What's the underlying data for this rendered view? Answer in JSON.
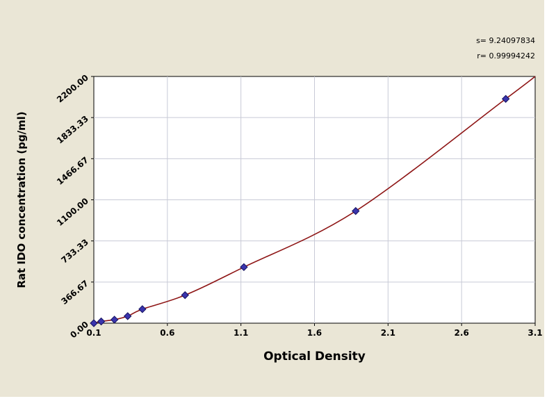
{
  "page": {
    "background": "#eae6d6",
    "plot_background": "#ffffff"
  },
  "chart_data": {
    "type": "scatter",
    "title": "",
    "xlabel": "Optical Density",
    "ylabel": "Rat IDO concentration (pg/ml)",
    "xlim": [
      0.1,
      3.1
    ],
    "ylim": [
      0,
      2200
    ],
    "x_ticks": [
      0.1,
      0.6,
      1.1,
      1.6,
      2.1,
      2.6,
      3.1
    ],
    "x_tick_labels": [
      "0.1",
      "0.6",
      "1.1",
      "1.6",
      "2.1",
      "2.6",
      "3.1"
    ],
    "y_ticks": [
      0,
      366.67,
      733.33,
      1100,
      1466.67,
      1833.33,
      2200
    ],
    "y_tick_labels": [
      "0.00",
      "366.67",
      "733.33",
      "1100.00",
      "1466.67",
      "1833.33",
      "2200.00"
    ],
    "grid": true,
    "grid_color": "#c8cad6",
    "axis_color": "#000000",
    "annotations": [
      "s=  9.24097834",
      "r= 0.99994242"
    ],
    "legend": false,
    "series": [
      {
        "name": "standard-points",
        "type": "scatter",
        "marker": "diamond",
        "color": "#3a34ad",
        "edge_color": "#15125e",
        "x": [
          0.1,
          0.15,
          0.24,
          0.33,
          0.43,
          0.72,
          1.12,
          1.88,
          2.9
        ],
        "y": [
          0,
          15.6,
          31.3,
          62.5,
          125,
          250,
          500,
          1000,
          2000
        ]
      },
      {
        "name": "fitted-curve",
        "type": "line",
        "color": "#8e1515",
        "x": [
          0.1,
          0.15,
          0.24,
          0.33,
          0.43,
          0.72,
          1.12,
          1.88,
          2.9,
          3.1
        ],
        "y": [
          0,
          15.6,
          31.3,
          62.5,
          125,
          250,
          500,
          1000,
          2000,
          2200
        ]
      }
    ]
  }
}
